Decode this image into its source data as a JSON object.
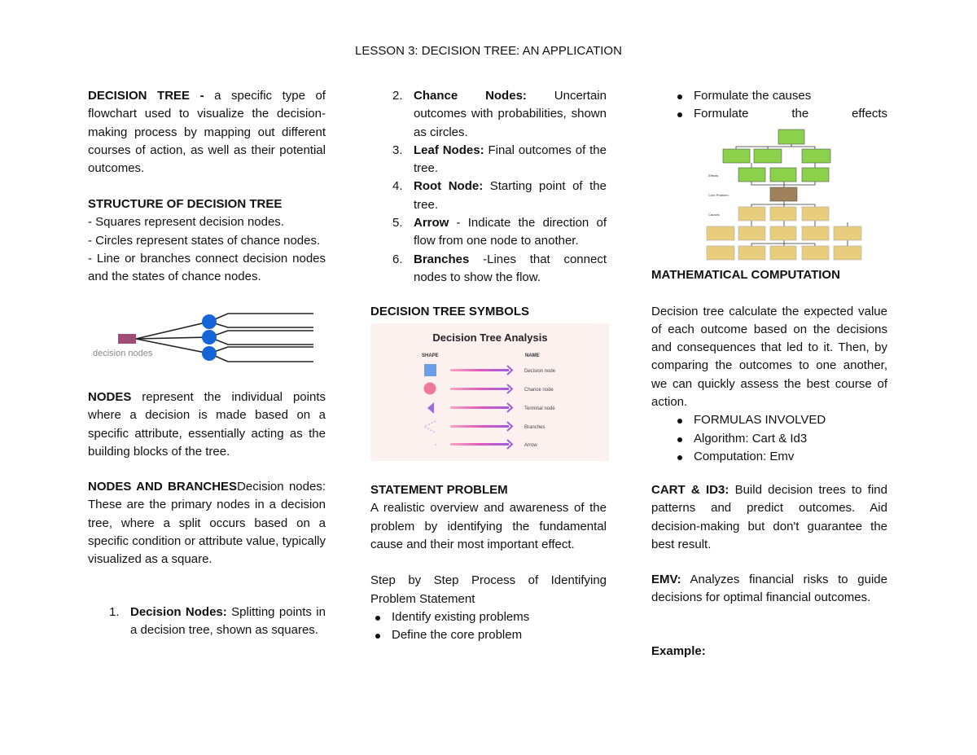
{
  "title": "LESSON 3: DECISION TREE: AN APPLICATION",
  "col1": {
    "def_term": "DECISION TREE -",
    "def_text": " a specific type of flowchart used to visualize the decision-making process by mapping out different courses of action, as well as their potential outcomes.",
    "structure_heading": "STRUCTURE OF DECISION TREE",
    "structure_lines": [
      "- Squares represent decision nodes.",
      "- Circles represent states of chance nodes.",
      "- Line or branches connect decision nodes and the states of chance nodes."
    ],
    "image_caption": "decision nodes",
    "nodes_term": "NODES",
    "nodes_text": " represent the individual points where a decision is made based on a specific attribute, essentially acting as the building blocks of the tree.",
    "nb_term": "NODES AND BRANCHES",
    "nb_text": "Decision nodes: These are the primary nodes in a decision tree, where a split occurs based on a specific condition or attribute value, typically visualized as a square.",
    "list": [
      {
        "num": "1.",
        "term": "Decision Nodes:",
        "text": " Splitting points in a decision tree, shown as squares."
      }
    ]
  },
  "col2": {
    "list": [
      {
        "num": "2.",
        "term": "Chance Nodes:",
        "text": " Uncertain outcomes with probabilities, shown as circles."
      },
      {
        "num": "3.",
        "term": "Leaf Nodes:",
        "text": " Final outcomes of the tree."
      },
      {
        "num": "4.",
        "term": "Root Node:",
        "text": " Starting point of the tree."
      },
      {
        "num": "5.",
        "term": "Arrow",
        "text": " - Indicate the direction of flow from one node to another."
      },
      {
        "num": "6.",
        "term": "Branches",
        "text": " -Lines that connect nodes to show the flow."
      }
    ],
    "symbols_heading": "DECISION TREE SYMBOLS",
    "symbols_image": {
      "title": "Decision Tree Analysis",
      "shape_header": "SHAPE",
      "name_header": "NAME",
      "rows": [
        {
          "shape": "square",
          "name": "Decision node",
          "color": "#6a9ee8"
        },
        {
          "shape": "circle",
          "name": "Chance node",
          "color": "#f07898"
        },
        {
          "shape": "triangle",
          "name": "Terminal node",
          "color": "#9b6ee0"
        },
        {
          "shape": "branch",
          "name": "Branches",
          "color": "#b79be8"
        },
        {
          "shape": "dot",
          "name": "Arrow",
          "color": "#b79be8"
        }
      ]
    },
    "statement_heading": "STATEMENT PROBLEM",
    "statement_text": "A realistic overview and awareness of the problem by identifying the fundamental cause and their most important effect.",
    "steps_intro": "Step by Step Process of Identifying Problem Statement",
    "steps": [
      "Identify existing problems",
      "Define the core problem"
    ]
  },
  "col3": {
    "bullets_top": [
      "Formulate the causes"
    ],
    "spread_bullet": [
      "Formulate",
      "the",
      "effects"
    ],
    "tree_labels": {
      "effects": "Effects",
      "core": "Core Problem",
      "causes": "Causes"
    },
    "math_heading": "MATHEMATICAL COMPUTATION",
    "math_text": "Decision tree calculate the expected value of each outcome based on the decisions and consequences that led to it. Then, by comparing the outcomes to one another, we can quickly assess the best course of action.",
    "math_bullets": [
      "FORMULAS INVOLVED",
      "Algorithm: Cart & Id3",
      "Computation: Emv"
    ],
    "cart_term": "CART & ID3:",
    "cart_text": " Build decision trees to find patterns and predict outcomes. Aid decision-making but don't guarantee the best result.",
    "emv_term": "EMV:",
    "emv_text": " Analyzes financial risks to guide decisions for optimal financial outcomes.",
    "example": "Example:"
  }
}
